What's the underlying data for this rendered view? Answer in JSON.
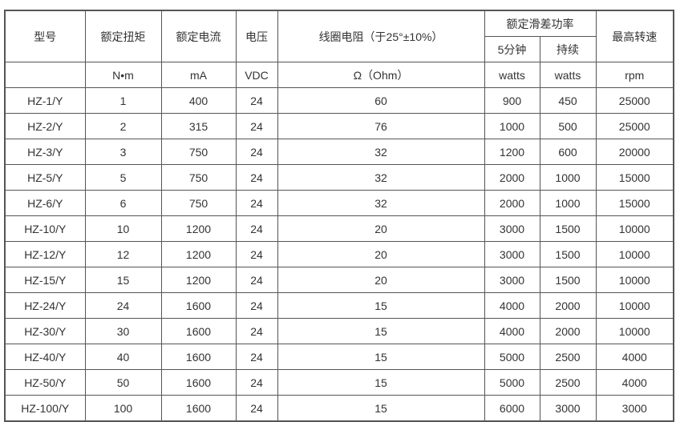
{
  "header": {
    "model": "型号",
    "torque": "额定扭矩",
    "current": "额定电流",
    "voltage": "电压",
    "resistance": "线圈电阻（于25°±10%）",
    "slip_power": "额定滑差功率",
    "five_min": "5分钟",
    "continuous": "持续",
    "max_speed": "最高转速"
  },
  "units": [
    "N•m",
    "mA",
    "VDC",
    "Ω（Ohm）",
    "watts",
    "watts",
    "rpm"
  ],
  "rows": [
    [
      "HZ-1/Y",
      "1",
      "400",
      "24",
      "60",
      "900",
      "450",
      "25000"
    ],
    [
      "HZ-2/Y",
      "2",
      "315",
      "24",
      "76",
      "1000",
      "500",
      "25000"
    ],
    [
      "HZ-3/Y",
      "3",
      "750",
      "24",
      "32",
      "1200",
      "600",
      "20000"
    ],
    [
      "HZ-5/Y",
      "5",
      "750",
      "24",
      "32",
      "2000",
      "1000",
      "15000"
    ],
    [
      "HZ-6/Y",
      "6",
      "750",
      "24",
      "32",
      "2000",
      "1000",
      "15000"
    ],
    [
      "HZ-10/Y",
      "10",
      "1200",
      "24",
      "20",
      "3000",
      "1500",
      "10000"
    ],
    [
      "HZ-12/Y",
      "12",
      "1200",
      "24",
      "20",
      "3000",
      "1500",
      "10000"
    ],
    [
      "HZ-15/Y",
      "15",
      "1200",
      "24",
      "20",
      "3000",
      "1500",
      "10000"
    ],
    [
      "HZ-24/Y",
      "24",
      "1600",
      "24",
      "15",
      "4000",
      "2000",
      "10000"
    ],
    [
      "HZ-30/Y",
      "30",
      "1600",
      "24",
      "15",
      "4000",
      "2000",
      "10000"
    ],
    [
      "HZ-40/Y",
      "40",
      "1600",
      "24",
      "15",
      "5000",
      "2500",
      "4000"
    ],
    [
      "HZ-50/Y",
      "50",
      "1600",
      "24",
      "15",
      "5000",
      "2500",
      "4000"
    ],
    [
      "HZ-100/Y",
      "100",
      "1600",
      "24",
      "15",
      "6000",
      "3000",
      "3000"
    ]
  ]
}
